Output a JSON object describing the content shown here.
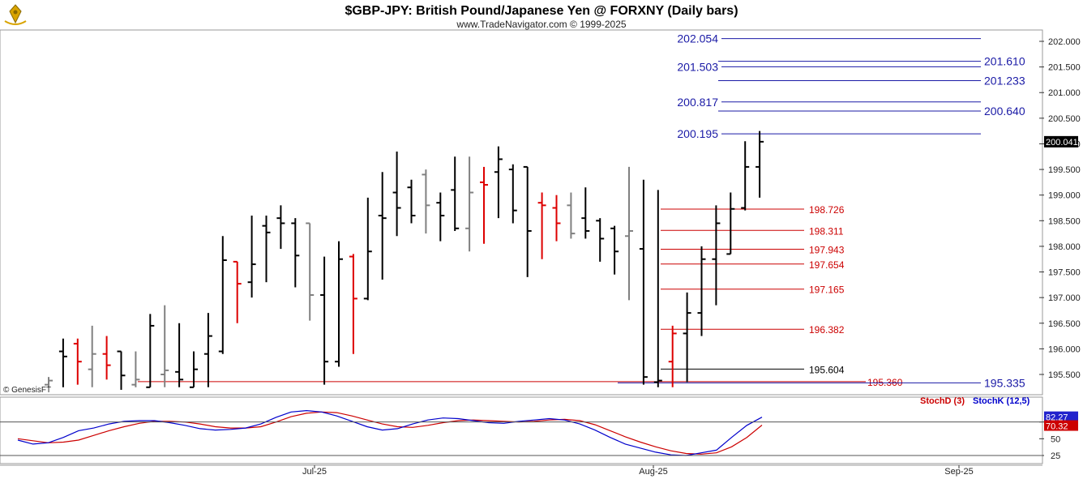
{
  "header": {
    "title": "$GBP-JPY:  British Pound/Japanese Yen @ FORXNY  (Daily bars)",
    "subtitle": "www.TradeNavigator.com © 1999-2025",
    "watermark": "© GenesisFT",
    "logo_icon": "gold-kite-logo-icon"
  },
  "colors": {
    "up_bar": "#000000",
    "down_bar": "#dd0000",
    "neutral_bar": "#808080",
    "resistance_line": "#1a1aa6",
    "support_line": "#cc0000",
    "stoch_k": "#0000cc",
    "stoch_d": "#cc0000",
    "last_price_bg": "#000000",
    "stoch_k_badge": "#2222cc",
    "stoch_d_badge": "#cc0000"
  },
  "chart_data": [
    {
      "type": "ohlc",
      "ylim": [
        195.25,
        202.2
      ],
      "y_ticks": [
        "202.000",
        "201.500",
        "201.000",
        "200.500",
        "200.000",
        "199.500",
        "199.000",
        "198.500",
        "198.000",
        "197.500",
        "197.000",
        "196.500",
        "196.000",
        "195.500"
      ],
      "x_ticks": [
        "Jul-25",
        "Aug-25",
        "Sep-25"
      ],
      "last_price": "200.041",
      "bars": [
        {
          "o": 195.3,
          "h": 195.45,
          "l": 195.25,
          "c": 195.38,
          "color": "gray"
        },
        {
          "o": 195.95,
          "h": 196.2,
          "l": 195.25,
          "c": 195.85,
          "color": "black"
        },
        {
          "o": 196.1,
          "h": 196.2,
          "l": 195.3,
          "c": 195.75,
          "color": "red"
        },
        {
          "o": 195.6,
          "h": 196.45,
          "l": 195.25,
          "c": 195.9,
          "color": "gray"
        },
        {
          "o": 195.9,
          "h": 196.25,
          "l": 195.4,
          "c": 195.68,
          "color": "red"
        },
        {
          "o": 195.95,
          "h": 195.95,
          "l": 195.2,
          "c": 195.48,
          "color": "black"
        },
        {
          "o": 195.3,
          "h": 195.95,
          "l": 195.25,
          "c": 195.4,
          "color": "gray"
        },
        {
          "o": 195.25,
          "h": 196.68,
          "l": 195.25,
          "c": 196.45,
          "color": "black"
        },
        {
          "o": 195.5,
          "h": 196.85,
          "l": 195.25,
          "c": 195.58,
          "color": "gray"
        },
        {
          "o": 195.55,
          "h": 196.5,
          "l": 195.25,
          "c": 195.4,
          "color": "black"
        },
        {
          "o": 195.25,
          "h": 195.95,
          "l": 195.25,
          "c": 195.6,
          "color": "black"
        },
        {
          "o": 195.9,
          "h": 196.7,
          "l": 195.25,
          "c": 196.25,
          "color": "black"
        },
        {
          "o": 195.95,
          "h": 198.2,
          "l": 195.9,
          "c": 197.73,
          "color": "black"
        },
        {
          "o": 197.7,
          "h": 197.7,
          "l": 196.5,
          "c": 197.27,
          "color": "red"
        },
        {
          "o": 197.3,
          "h": 198.6,
          "l": 197.0,
          "c": 197.65,
          "color": "black"
        },
        {
          "o": 198.4,
          "h": 198.6,
          "l": 197.3,
          "c": 198.27,
          "color": "black"
        },
        {
          "o": 198.55,
          "h": 198.8,
          "l": 197.95,
          "c": 198.45,
          "color": "black"
        },
        {
          "o": 198.45,
          "h": 198.55,
          "l": 197.2,
          "c": 197.82,
          "color": "black"
        },
        {
          "o": 198.45,
          "h": 198.45,
          "l": 196.55,
          "c": 197.05,
          "color": "gray"
        },
        {
          "o": 197.05,
          "h": 197.8,
          "l": 195.3,
          "c": 195.75,
          "color": "black"
        },
        {
          "o": 195.75,
          "h": 198.1,
          "l": 195.65,
          "c": 197.75,
          "color": "black"
        },
        {
          "o": 197.8,
          "h": 197.85,
          "l": 195.9,
          "c": 196.98,
          "color": "red"
        },
        {
          "o": 196.98,
          "h": 198.95,
          "l": 196.95,
          "c": 197.9,
          "color": "black"
        },
        {
          "o": 198.6,
          "h": 199.45,
          "l": 197.35,
          "c": 198.55,
          "color": "black"
        },
        {
          "o": 199.05,
          "h": 199.85,
          "l": 198.2,
          "c": 198.75,
          "color": "black"
        },
        {
          "o": 199.15,
          "h": 199.3,
          "l": 198.45,
          "c": 198.6,
          "color": "black"
        },
        {
          "o": 199.4,
          "h": 199.5,
          "l": 198.25,
          "c": 198.8,
          "color": "gray"
        },
        {
          "o": 198.85,
          "h": 199.05,
          "l": 198.1,
          "c": 198.6,
          "color": "black"
        },
        {
          "o": 199.1,
          "h": 199.75,
          "l": 198.3,
          "c": 198.35,
          "color": "black"
        },
        {
          "o": 198.35,
          "h": 199.75,
          "l": 197.9,
          "c": 199.05,
          "color": "gray"
        },
        {
          "o": 199.25,
          "h": 199.55,
          "l": 198.05,
          "c": 199.2,
          "color": "red"
        },
        {
          "o": 199.45,
          "h": 199.95,
          "l": 198.55,
          "c": 199.7,
          "color": "black"
        },
        {
          "o": 199.5,
          "h": 199.6,
          "l": 198.45,
          "c": 198.7,
          "color": "black"
        },
        {
          "o": 199.55,
          "h": 199.55,
          "l": 197.4,
          "c": 198.3,
          "color": "black"
        },
        {
          "o": 198.85,
          "h": 199.05,
          "l": 197.75,
          "c": 198.8,
          "color": "red"
        },
        {
          "o": 198.75,
          "h": 199.0,
          "l": 198.1,
          "c": 198.45,
          "color": "red"
        },
        {
          "o": 198.8,
          "h": 199.05,
          "l": 198.15,
          "c": 198.25,
          "color": "gray"
        },
        {
          "o": 198.55,
          "h": 199.15,
          "l": 198.15,
          "c": 198.3,
          "color": "black"
        },
        {
          "o": 198.5,
          "h": 198.55,
          "l": 197.7,
          "c": 198.15,
          "color": "black"
        },
        {
          "o": 198.35,
          "h": 198.4,
          "l": 197.45,
          "c": 197.9,
          "color": "black"
        },
        {
          "o": 198.2,
          "h": 199.55,
          "l": 196.95,
          "c": 198.3,
          "color": "gray"
        },
        {
          "o": 197.95,
          "h": 199.3,
          "l": 195.3,
          "c": 195.45,
          "color": "black"
        },
        {
          "o": 195.35,
          "h": 199.1,
          "l": 195.25,
          "c": 195.38,
          "color": "black"
        },
        {
          "o": 195.75,
          "h": 196.45,
          "l": 195.25,
          "c": 196.3,
          "color": "red"
        },
        {
          "o": 196.3,
          "h": 197.1,
          "l": 195.35,
          "c": 196.7,
          "color": "black"
        },
        {
          "o": 196.7,
          "h": 198.0,
          "l": 196.25,
          "c": 197.75,
          "color": "black"
        },
        {
          "o": 197.75,
          "h": 198.8,
          "l": 196.85,
          "c": 198.45,
          "color": "black"
        },
        {
          "o": 197.85,
          "h": 199.05,
          "l": 197.85,
          "c": 198.73,
          "color": "black"
        },
        {
          "o": 198.75,
          "h": 200.05,
          "l": 198.7,
          "c": 199.55,
          "color": "black"
        },
        {
          "o": 199.55,
          "h": 200.25,
          "l": 198.95,
          "c": 200.041,
          "color": "black"
        }
      ],
      "resistance_levels": [
        "202.054",
        "201.610",
        "201.503",
        "201.233",
        "200.817",
        "200.640",
        "200.195"
      ],
      "support_levels": [
        "198.726",
        "198.311",
        "197.943",
        "197.654",
        "197.165",
        "196.382",
        "195.604",
        "195.360",
        "195.335"
      ]
    },
    {
      "type": "line",
      "y_ticks": [
        "75",
        "50",
        "25"
      ],
      "ylim": [
        20,
        100
      ],
      "series": [
        {
          "name": "StochD (3)",
          "values": [
            50,
            47,
            44,
            45,
            48,
            55,
            62,
            68,
            73,
            76,
            76,
            75,
            72,
            68,
            66,
            66,
            68,
            75,
            83,
            88,
            90,
            89,
            84,
            78,
            72,
            68,
            67,
            70,
            74,
            77,
            78,
            77,
            76,
            75,
            76,
            78,
            79,
            77,
            71,
            62,
            53,
            45,
            38,
            32,
            28,
            27,
            29,
            38,
            52,
            70.32
          ]
        },
        {
          "name": "StochK (12,5)",
          "values": [
            48,
            42,
            44,
            52,
            62,
            66,
            72,
            76,
            77,
            77,
            74,
            70,
            65,
            63,
            64,
            66,
            72,
            82,
            90,
            92,
            90,
            84,
            76,
            68,
            63,
            65,
            72,
            78,
            81,
            80,
            77,
            74,
            73,
            76,
            78,
            80,
            78,
            72,
            63,
            52,
            42,
            36,
            30,
            26,
            25,
            29,
            33,
            52,
            70,
            82.27
          ]
        }
      ],
      "last_values": {
        "stoch_k": "82.27",
        "stoch_d": "70.32"
      },
      "legend": {
        "stoch_d": "StochD (3)",
        "stoch_k": "StochK (12,5)"
      }
    }
  ]
}
